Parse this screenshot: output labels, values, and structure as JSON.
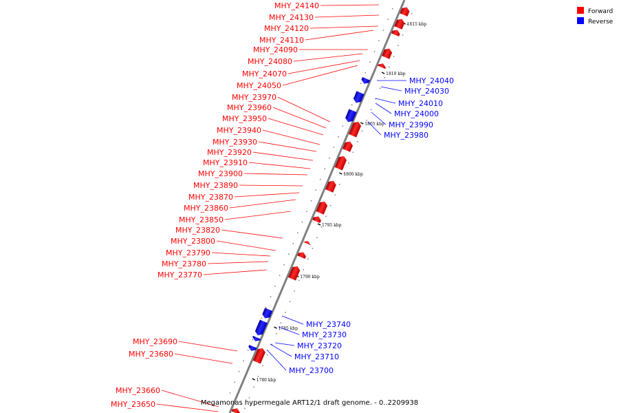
{
  "caption": "Megamonas hypermegale ART12/1 draft genome. - 0..2209938",
  "colors": {
    "forward": "#ff0000",
    "reverse": "#0000ff",
    "backbone": "#808080"
  },
  "legend": [
    {
      "label": "Forward",
      "color": "#ff0000"
    },
    {
      "label": "Reverse",
      "color": "#0000ff"
    }
  ],
  "ticks": [
    {
      "label": "1815 kbp",
      "kbp": 1815
    },
    {
      "label": "1810 kbp",
      "kbp": 1810
    },
    {
      "label": "1805 kbp",
      "kbp": 1805
    },
    {
      "label": "1800 kbp",
      "kbp": 1800
    },
    {
      "label": "1795 kbp",
      "kbp": 1795
    },
    {
      "label": "1790 kbp",
      "kbp": 1790
    },
    {
      "label": "1785 kbp",
      "kbp": 1785
    },
    {
      "label": "1780 kbp",
      "kbp": 1780
    }
  ],
  "genes": [
    {
      "name": "MHY_24140",
      "strand": "forward"
    },
    {
      "name": "MHY_24130",
      "strand": "forward"
    },
    {
      "name": "MHY_24120",
      "strand": "forward"
    },
    {
      "name": "MHY_24110",
      "strand": "forward"
    },
    {
      "name": "MHY_24090",
      "strand": "forward"
    },
    {
      "name": "MHY_24080",
      "strand": "forward"
    },
    {
      "name": "MHY_24070",
      "strand": "forward"
    },
    {
      "name": "MHY_24050",
      "strand": "forward"
    },
    {
      "name": "MHY_23970",
      "strand": "forward"
    },
    {
      "name": "MHY_23960",
      "strand": "forward"
    },
    {
      "name": "MHY_23950",
      "strand": "forward"
    },
    {
      "name": "MHY_23940",
      "strand": "forward"
    },
    {
      "name": "MHY_23930",
      "strand": "forward"
    },
    {
      "name": "MHY_23920",
      "strand": "forward"
    },
    {
      "name": "MHY_23910",
      "strand": "forward"
    },
    {
      "name": "MHY_23900",
      "strand": "forward"
    },
    {
      "name": "MHY_23890",
      "strand": "forward"
    },
    {
      "name": "MHY_23870",
      "strand": "forward"
    },
    {
      "name": "MHY_23860",
      "strand": "forward"
    },
    {
      "name": "MHY_23850",
      "strand": "forward"
    },
    {
      "name": "MHY_23820",
      "strand": "forward"
    },
    {
      "name": "MHY_23800",
      "strand": "forward"
    },
    {
      "name": "MHY_23790",
      "strand": "forward"
    },
    {
      "name": "MHY_23780",
      "strand": "forward"
    },
    {
      "name": "MHY_23770",
      "strand": "forward"
    },
    {
      "name": "MHY_23690",
      "strand": "forward"
    },
    {
      "name": "MHY_23680",
      "strand": "forward"
    },
    {
      "name": "MHY_23660",
      "strand": "forward"
    },
    {
      "name": "MHY_23650",
      "strand": "forward"
    },
    {
      "name": "MHY_24040",
      "strand": "reverse"
    },
    {
      "name": "MHY_24030",
      "strand": "reverse"
    },
    {
      "name": "MHY_24010",
      "strand": "reverse"
    },
    {
      "name": "MHY_24000",
      "strand": "reverse"
    },
    {
      "name": "MHY_23990",
      "strand": "reverse"
    },
    {
      "name": "MHY_23980",
      "strand": "reverse"
    },
    {
      "name": "MHY_23740",
      "strand": "reverse"
    },
    {
      "name": "MHY_23730",
      "strand": "reverse"
    },
    {
      "name": "MHY_23720",
      "strand": "reverse"
    },
    {
      "name": "MHY_23710",
      "strand": "reverse"
    },
    {
      "name": "MHY_23700",
      "strand": "reverse"
    }
  ]
}
